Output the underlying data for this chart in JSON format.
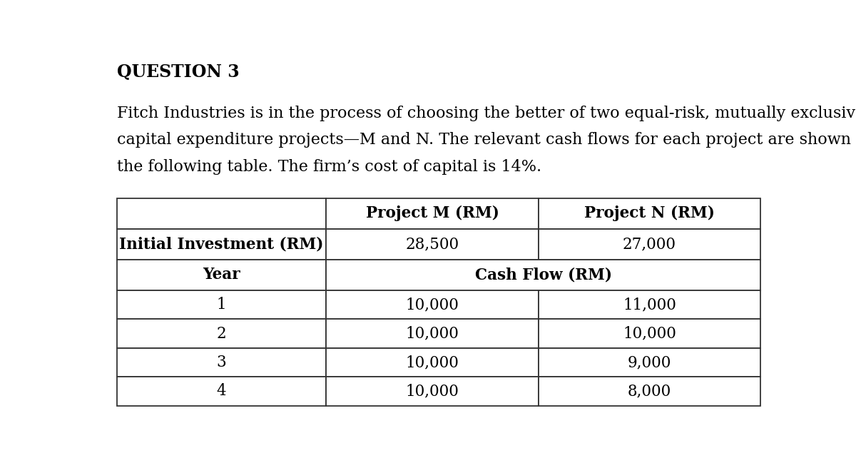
{
  "title": "QUESTION 3",
  "paragraph_lines": [
    "Fitch Industries is in the process of choosing the better of two equal-risk, mutually exclusive",
    "capital expenditure projects—M and N. The relevant cash flows for each project are shown in",
    "the following table. The firm’s cost of capital is 14%."
  ],
  "col_headers": [
    "",
    "Project M (RM)",
    "Project N (RM)"
  ],
  "row1_label": "Initial Investment (RM)",
  "row1_m": "28,500",
  "row1_n": "27,000",
  "row2_label": "Year",
  "row2_span": "Cash Flow (RM)",
  "data_rows": [
    [
      "1",
      "10,000",
      "11,000"
    ],
    [
      "2",
      "10,000",
      "10,000"
    ],
    [
      "3",
      "10,000",
      "9,000"
    ],
    [
      "4",
      "10,000",
      "8,000"
    ]
  ],
  "bg_color": "#ffffff",
  "text_color": "#000000",
  "title_fontsize": 17,
  "paragraph_fontsize": 16,
  "table_fontsize": 15.5,
  "font_family": "DejaVu Serif"
}
